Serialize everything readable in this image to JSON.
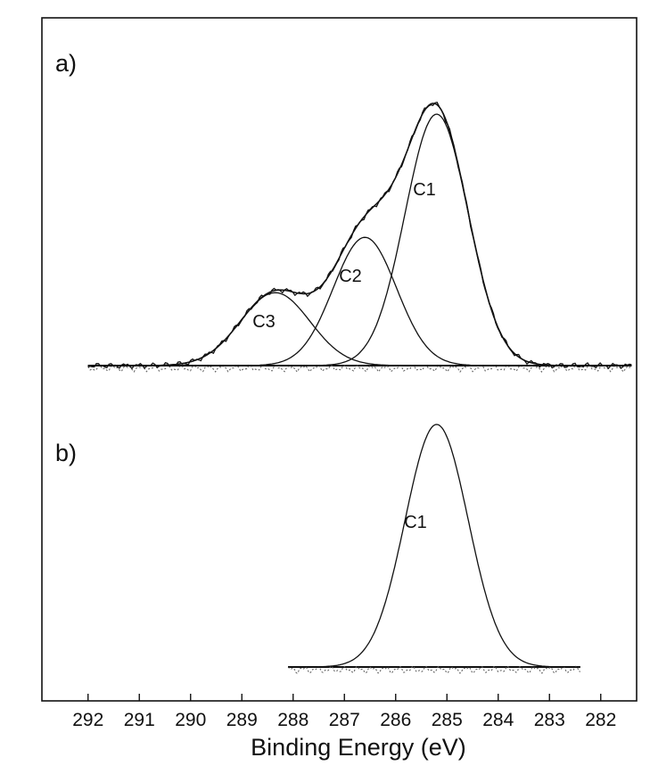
{
  "chart_data": {
    "type": "line",
    "xlabel": "Binding Energy (eV)",
    "xlim": [
      292.9,
      281.3
    ],
    "x_reversed": true,
    "x_ticks": [
      "292",
      "291",
      "290",
      "289",
      "288",
      "287",
      "286",
      "285",
      "284",
      "283",
      "282"
    ],
    "y_ticks_shown": false,
    "grid": false,
    "panels": [
      {
        "label": "a)",
        "x_range": [
          292.0,
          281.4
        ],
        "peaks": [
          {
            "name": "C1",
            "center": 285.2,
            "height": 1.0,
            "fwhm": 1.45
          },
          {
            "name": "C2",
            "center": 286.6,
            "height": 0.51,
            "fwhm": 1.45
          },
          {
            "name": "C3",
            "center": 288.35,
            "height": 0.29,
            "fwhm": 1.6
          }
        ],
        "curves": [
          "C1",
          "C2",
          "C3",
          "envelope",
          "experimental",
          "residual",
          "baseline"
        ]
      },
      {
        "label": "b)",
        "x_range": [
          288.1,
          282.4
        ],
        "peaks": [
          {
            "name": "C1",
            "center": 285.2,
            "height": 1.0,
            "fwhm": 1.45
          }
        ],
        "curves": [
          "C1",
          "residual",
          "baseline"
        ]
      }
    ]
  }
}
